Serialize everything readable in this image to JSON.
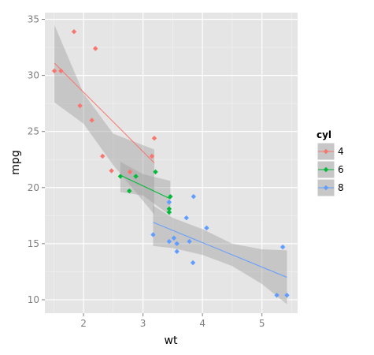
{
  "chart_data": {
    "type": "scatter",
    "xlabel": "wt",
    "ylabel": "mpg",
    "xlim": [
      1.35,
      5.6
    ],
    "ylim": [
      8.8,
      35.6
    ],
    "x_ticks": [
      2,
      3,
      4,
      5
    ],
    "y_ticks": [
      10,
      15,
      20,
      25,
      30,
      35
    ],
    "x_tick_labels": [
      "2",
      "3",
      "4",
      "5"
    ],
    "y_tick_labels": [
      "10",
      "15",
      "20",
      "25",
      "30",
      "35"
    ],
    "grid": true,
    "background": "#e5e5e5",
    "legend": {
      "title": "cyl",
      "position": "right"
    },
    "smoothing": "linear fit with confidence band",
    "series": [
      {
        "name": "4",
        "color": "#f8766d",
        "points": [
          [
            1.51,
            30.4
          ],
          [
            1.62,
            30.4
          ],
          [
            1.84,
            33.9
          ],
          [
            1.94,
            27.3
          ],
          [
            2.14,
            26.0
          ],
          [
            2.2,
            32.4
          ],
          [
            2.32,
            22.8
          ],
          [
            2.47,
            21.5
          ],
          [
            2.78,
            21.4
          ],
          [
            3.15,
            22.8
          ],
          [
            3.19,
            24.4
          ]
        ],
        "fit": {
          "x": [
            1.51,
            3.19
          ],
          "y": [
            31.1,
            22.2
          ]
        },
        "band_upper": [
          [
            1.51,
            34.5
          ],
          [
            2.0,
            28.4
          ],
          [
            2.5,
            24.8
          ],
          [
            3.19,
            23.4
          ]
        ],
        "band_lower": [
          [
            1.51,
            27.6
          ],
          [
            2.0,
            25.7
          ],
          [
            2.5,
            22.0
          ],
          [
            3.19,
            17.6
          ]
        ]
      },
      {
        "name": "6",
        "color": "#00ba38",
        "points": [
          [
            2.62,
            21.0
          ],
          [
            2.77,
            19.7
          ],
          [
            2.88,
            21.0
          ],
          [
            3.21,
            21.4
          ],
          [
            3.44,
            18.1
          ],
          [
            3.44,
            17.8
          ],
          [
            3.46,
            19.2
          ]
        ],
        "fit": {
          "x": [
            2.62,
            3.46
          ],
          "y": [
            21.1,
            19.0
          ]
        },
        "band_upper": [
          [
            2.62,
            22.3
          ],
          [
            3.0,
            21.2
          ],
          [
            3.46,
            20.6
          ]
        ],
        "band_lower": [
          [
            2.62,
            19.6
          ],
          [
            3.0,
            19.3
          ],
          [
            3.46,
            17.5
          ]
        ]
      },
      {
        "name": "8",
        "color": "#619cff",
        "points": [
          [
            3.17,
            15.8
          ],
          [
            3.44,
            18.7
          ],
          [
            3.52,
            15.5
          ],
          [
            3.44,
            15.2
          ],
          [
            3.57,
            14.3
          ],
          [
            3.57,
            15.0
          ],
          [
            3.73,
            17.3
          ],
          [
            3.78,
            15.2
          ],
          [
            3.84,
            13.3
          ],
          [
            3.85,
            19.2
          ],
          [
            4.07,
            16.4
          ],
          [
            5.25,
            10.4
          ],
          [
            5.42,
            10.4
          ],
          [
            5.35,
            14.7
          ]
        ],
        "fit": {
          "x": [
            3.17,
            5.42
          ],
          "y": [
            16.9,
            12.0
          ]
        },
        "band_upper": [
          [
            3.17,
            18.4
          ],
          [
            3.5,
            17.3
          ],
          [
            4.0,
            16.3
          ],
          [
            4.5,
            15.0
          ],
          [
            5.0,
            14.5
          ],
          [
            5.42,
            14.4
          ]
        ],
        "band_lower": [
          [
            3.17,
            14.8
          ],
          [
            3.5,
            14.6
          ],
          [
            4.0,
            14.0
          ],
          [
            4.5,
            13.0
          ],
          [
            5.0,
            11.4
          ],
          [
            5.42,
            9.6
          ]
        ]
      }
    ]
  }
}
